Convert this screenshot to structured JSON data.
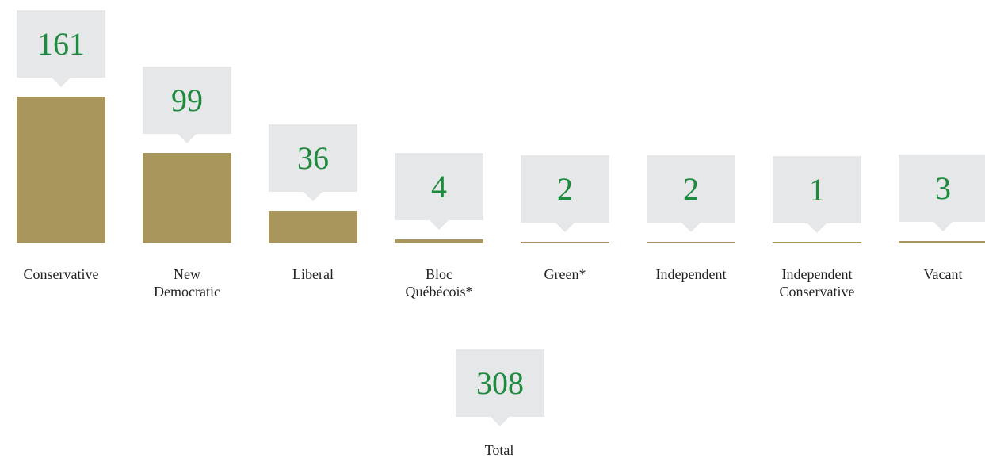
{
  "chart_data": {
    "type": "bar",
    "categories": [
      "Conservative",
      "New Democratic",
      "Liberal",
      "Bloc Québécois*",
      "Green*",
      "Independent",
      "Independent Conservative",
      "Vacant"
    ],
    "values": [
      161,
      99,
      36,
      4,
      2,
      2,
      1,
      3
    ],
    "color": "#a8965c",
    "label_color": "#1e8a3e",
    "total": {
      "label": "Total",
      "value": 308
    }
  }
}
